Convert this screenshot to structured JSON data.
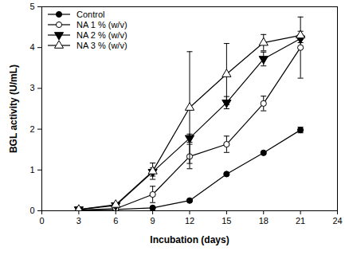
{
  "chart_data": {
    "type": "line",
    "x_label": "Incubation (days)",
    "y_label": "BGL activity (U/mL)",
    "x": [
      3,
      6,
      9,
      12,
      15,
      18,
      21
    ],
    "xlim": [
      0,
      24
    ],
    "xticks": [
      0,
      3,
      6,
      9,
      12,
      15,
      18,
      21,
      24
    ],
    "ylim": [
      0,
      5
    ],
    "yticks": [
      0,
      1,
      2,
      3,
      4,
      5
    ],
    "legend": "upper left",
    "series": [
      {
        "name": "Control",
        "color": "#000000",
        "marker": "circle",
        "line_style": "solid",
        "values": [
          0.02,
          0.03,
          0.07,
          0.25,
          0.9,
          1.42,
          1.98
        ],
        "errors": [
          0.01,
          0.01,
          0.02,
          0.02,
          0.03,
          0.03,
          0.07
        ]
      },
      {
        "name": "NA 1 % (w/v)",
        "color": "#000000",
        "marker": "circle-open",
        "line_style": "solid",
        "values": [
          0.02,
          0.05,
          0.4,
          1.33,
          1.63,
          2.63,
          4.0
        ],
        "errors": [
          0.01,
          0.02,
          0.2,
          0.3,
          0.2,
          0.18,
          0.75
        ]
      },
      {
        "name": "NA 2 % (w/v)",
        "color": "#000000",
        "marker": "triangle-down",
        "line_style": "solid",
        "values": [
          0.03,
          0.13,
          0.95,
          1.78,
          2.65,
          3.72,
          4.22
        ],
        "errors": [
          0.01,
          0.02,
          0.1,
          0.1,
          0.15,
          0.17,
          0.1
        ]
      },
      {
        "name": "NA 3 % (w/v)",
        "color": "#000000",
        "marker": "triangle-open",
        "line_style": "solid",
        "values": [
          0.03,
          0.15,
          0.97,
          2.53,
          3.35,
          4.12,
          4.3
        ],
        "errors": [
          0.01,
          0.02,
          0.2,
          1.37,
          0.75,
          0.2,
          0.1
        ]
      }
    ]
  }
}
